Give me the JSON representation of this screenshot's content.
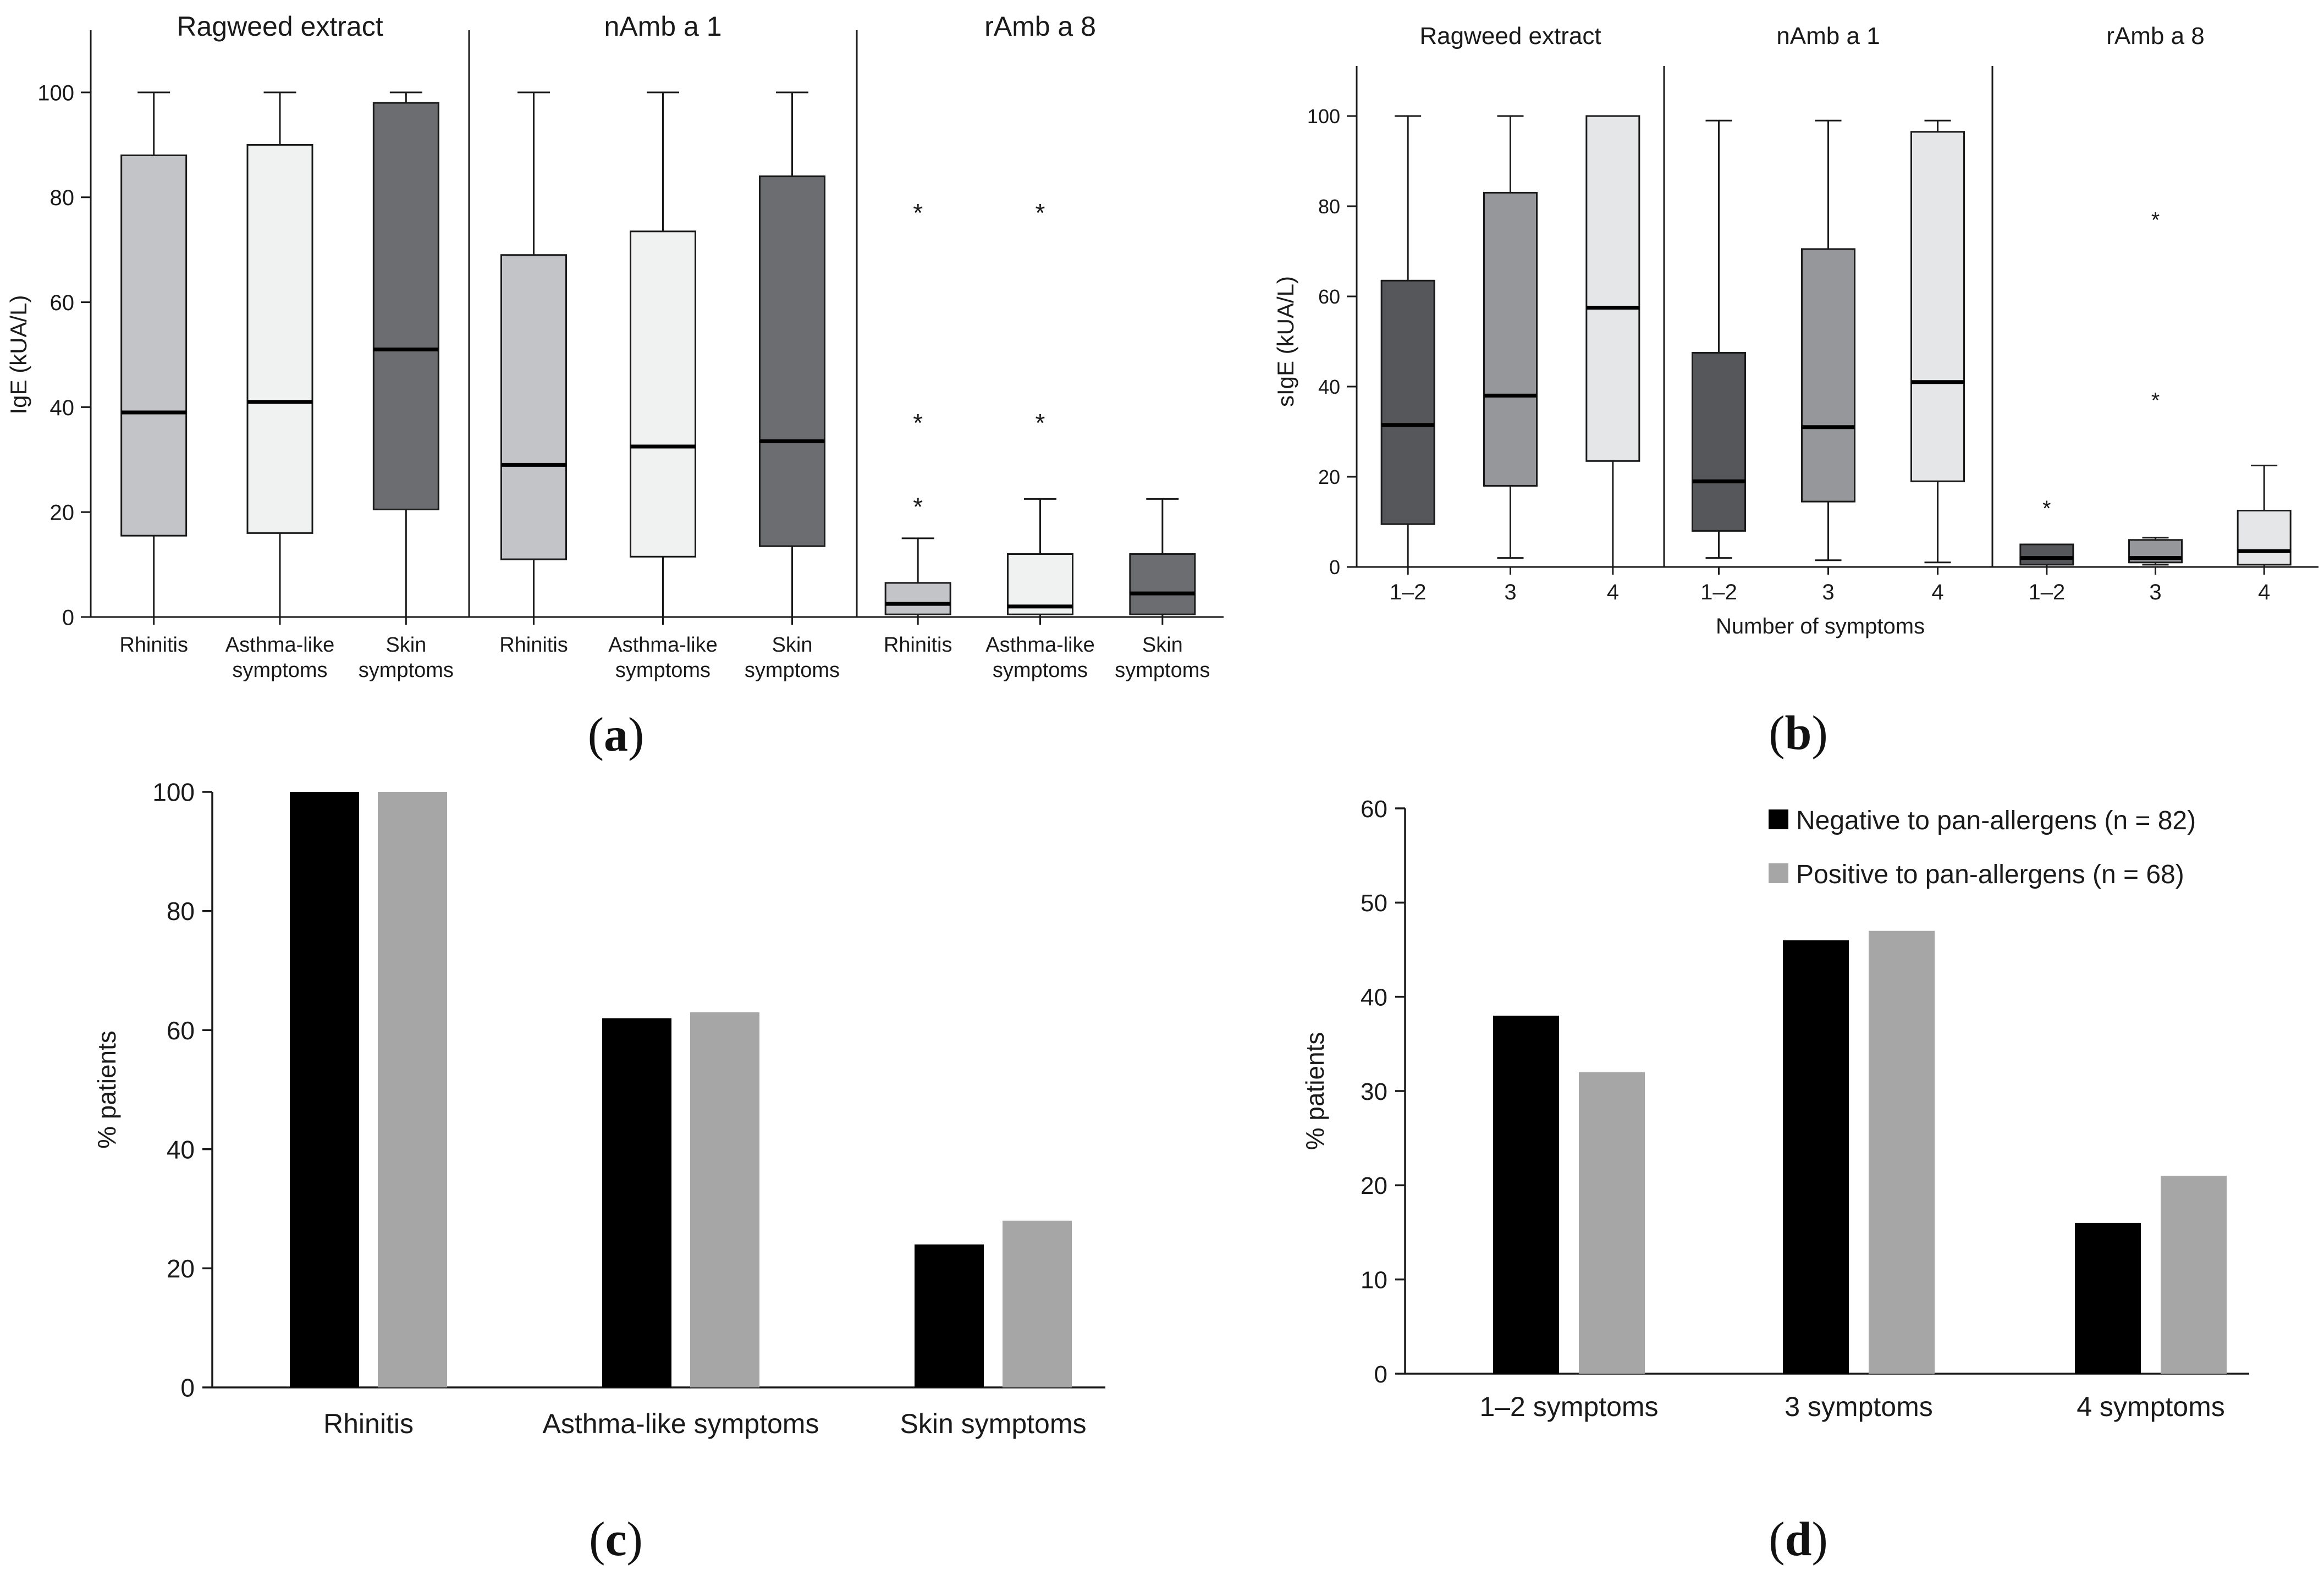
{
  "colors": {
    "box_light": "#c3c4c8",
    "box_white": "#f0f1f1",
    "box_dark": "#6c6d71",
    "box_b_dark": "#56575b",
    "box_b_mid": "#96979b",
    "box_b_light": "#e5e6e8",
    "bar_negative": "#000000",
    "bar_positive": "#a6a6a6"
  },
  "chart_data": [
    {
      "type": "box",
      "caption": "(a)",
      "ylabel": "IgE (kUA/L)",
      "ylim": [
        0,
        100
      ],
      "yticks": [
        "0",
        "20",
        "40",
        "60",
        "80",
        "100"
      ],
      "panels": [
        {
          "title": "Ragweed extract",
          "boxes": [
            {
              "category": [
                "Rhinitis"
              ],
              "min": 0,
              "q1": 15.5,
              "median": 39,
              "q3": 88,
              "max": 100,
              "outliers": [],
              "color": "box_light"
            },
            {
              "category": [
                "Asthma-like",
                "symptoms"
              ],
              "min": 0,
              "q1": 16,
              "median": 41,
              "q3": 90,
              "max": 100,
              "outliers": [],
              "color": "box_white"
            },
            {
              "category": [
                "Skin",
                "symptoms"
              ],
              "min": 0,
              "q1": 20.5,
              "median": 51,
              "q3": 98,
              "max": 100,
              "outliers": [],
              "color": "box_dark"
            }
          ]
        },
        {
          "title": "nAmb a 1",
          "boxes": [
            {
              "category": [
                "Rhinitis"
              ],
              "min": 0,
              "q1": 11,
              "median": 29,
              "q3": 69,
              "max": 100,
              "outliers": [],
              "color": "box_light"
            },
            {
              "category": [
                "Asthma-like",
                "symptoms"
              ],
              "min": 0,
              "q1": 11.5,
              "median": 32.5,
              "q3": 73.5,
              "max": 100,
              "outliers": [],
              "color": "box_white"
            },
            {
              "category": [
                "Skin",
                "symptoms"
              ],
              "min": 0,
              "q1": 13.5,
              "median": 33.5,
              "q3": 84,
              "max": 100,
              "outliers": [],
              "color": "box_dark"
            }
          ]
        },
        {
          "title": "rAmb a 8",
          "boxes": [
            {
              "category": [
                "Rhinitis"
              ],
              "min": 0,
              "q1": 0.5,
              "median": 2.5,
              "q3": 6.5,
              "max": 15,
              "outliers": [
                22,
                38,
                78
              ],
              "color": "box_light"
            },
            {
              "category": [
                "Asthma-like",
                "symptoms"
              ],
              "min": 0,
              "q1": 0.5,
              "median": 2,
              "q3": 12,
              "max": 22.5,
              "outliers": [
                38,
                78
              ],
              "color": "box_white"
            },
            {
              "category": [
                "Skin",
                "symptoms"
              ],
              "min": 0,
              "q1": 0.5,
              "median": 4.5,
              "q3": 12,
              "max": 22.5,
              "outliers": [],
              "color": "box_dark"
            }
          ]
        }
      ]
    },
    {
      "type": "box",
      "caption": "(b)",
      "ylabel": "sIgE (kUA/L)",
      "xlabel": "Number of symptoms",
      "ylim": [
        0,
        100
      ],
      "yticks": [
        "0",
        "20",
        "40",
        "60",
        "80",
        "100"
      ],
      "panels": [
        {
          "title": "Ragweed extract",
          "boxes": [
            {
              "category": [
                "1–2"
              ],
              "min": 0,
              "q1": 9.5,
              "median": 31.5,
              "q3": 63.5,
              "max": 100,
              "outliers": [],
              "color": "box_b_dark"
            },
            {
              "category": [
                "3"
              ],
              "min": 2,
              "q1": 18,
              "median": 38,
              "q3": 83,
              "max": 100,
              "outliers": [],
              "color": "box_b_mid"
            },
            {
              "category": [
                "4"
              ],
              "min": 0,
              "q1": 23.5,
              "median": 57.5,
              "q3": 100,
              "max": 100,
              "outliers": [],
              "color": "box_b_light"
            }
          ]
        },
        {
          "title": "nAmb a 1",
          "boxes": [
            {
              "category": [
                "1–2"
              ],
              "min": 2,
              "q1": 8,
              "median": 19,
              "q3": 47.5,
              "max": 99,
              "outliers": [],
              "color": "box_b_dark"
            },
            {
              "category": [
                "3"
              ],
              "min": 1.5,
              "q1": 14.5,
              "median": 31,
              "q3": 70.5,
              "max": 99,
              "outliers": [],
              "color": "box_b_mid"
            },
            {
              "category": [
                "4"
              ],
              "min": 1,
              "q1": 19,
              "median": 41,
              "q3": 96.5,
              "max": 99,
              "outliers": [],
              "color": "box_b_light"
            }
          ]
        },
        {
          "title": "rAmb a 8",
          "boxes": [
            {
              "category": [
                "1–2"
              ],
              "min": 0,
              "q1": 0.5,
              "median": 2,
              "q3": 5,
              "max": 5,
              "outliers": [
                14
              ],
              "color": "box_b_dark"
            },
            {
              "category": [
                "3"
              ],
              "min": 0.5,
              "q1": 1,
              "median": 2,
              "q3": 6,
              "max": 6.5,
              "outliers": [
                38,
                78
              ],
              "color": "box_b_mid"
            },
            {
              "category": [
                "4"
              ],
              "min": 0,
              "q1": 0.5,
              "median": 3.5,
              "q3": 12.5,
              "max": 22.5,
              "outliers": [],
              "color": "box_b_light"
            }
          ]
        }
      ]
    },
    {
      "type": "bar",
      "caption": "(c)",
      "ylabel": "% patients",
      "ylim": [
        0,
        100
      ],
      "yticks": [
        "0",
        "20",
        "40",
        "60",
        "80",
        "100"
      ],
      "categories": [
        "Rhinitis",
        "Asthma-like symptoms",
        "Skin symptoms"
      ],
      "series": [
        {
          "values": [
            100,
            62,
            24
          ],
          "color": "bar_negative"
        },
        {
          "values": [
            100,
            63,
            28
          ],
          "color": "bar_positive"
        }
      ]
    },
    {
      "type": "bar",
      "caption": "(d)",
      "ylabel": "% patients",
      "ylim": [
        0,
        60
      ],
      "yticks": [
        "0",
        "10",
        "20",
        "30",
        "40",
        "50",
        "60"
      ],
      "categories": [
        "1–2 symptoms",
        "3 symptoms",
        "4 symptoms"
      ],
      "legend_position": "top-right",
      "series": [
        {
          "name": "Negative to pan-allergens (n = 82)",
          "values": [
            38,
            46,
            16
          ],
          "color": "bar_negative"
        },
        {
          "name": "Positive to pan-allergens (n = 68)",
          "values": [
            32,
            47,
            21
          ],
          "color": "bar_positive"
        }
      ]
    }
  ]
}
